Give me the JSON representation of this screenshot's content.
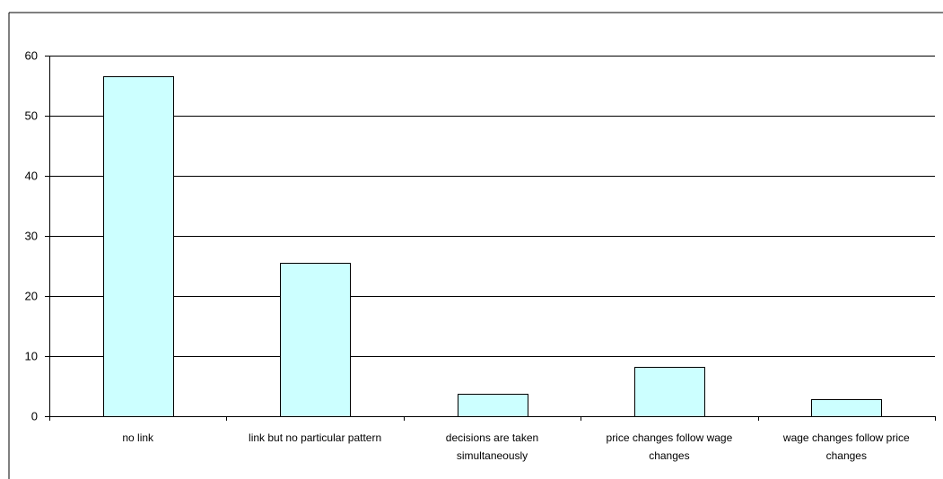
{
  "chart_data": {
    "type": "bar",
    "title": "",
    "xlabel": "",
    "ylabel": "",
    "ylim": [
      0,
      60
    ],
    "yticks": [
      0,
      10,
      20,
      30,
      40,
      50,
      60
    ],
    "grid": true,
    "legend": "none",
    "bar_color": "#ccffff",
    "bar_edge_color": "#000000",
    "categories": [
      [
        "no link"
      ],
      [
        "link but no particular pattern"
      ],
      [
        "decisions are taken",
        "simultaneously"
      ],
      [
        "price changes follow wage",
        "changes"
      ],
      [
        "wage changes follow price",
        "changes"
      ]
    ],
    "values": [
      56.5,
      25.5,
      3.8,
      8.2,
      2.9
    ]
  }
}
